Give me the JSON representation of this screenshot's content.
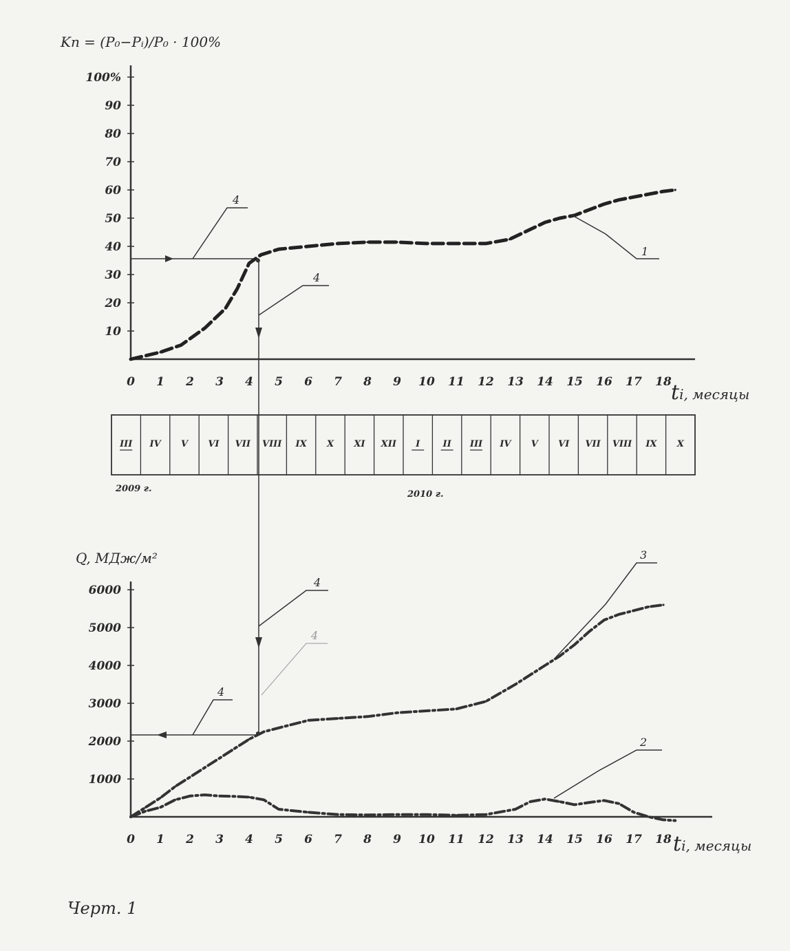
{
  "chart_data": [
    {
      "type": "line",
      "ylabel": "Kп = (P₀−Pᵢ)/P₀ · 100%",
      "xlabel_t": "t",
      "xlabel_rest": "i, месяцы",
      "x_ticks": [
        "0",
        "1",
        "2",
        "3",
        "4",
        "5",
        "6",
        "7",
        "8",
        "9",
        "10",
        "11",
        "12",
        "13",
        "14",
        "15",
        "16",
        "17",
        "18"
      ],
      "y_ticks": [
        "10",
        "20",
        "30",
        "40",
        "50",
        "60",
        "70",
        "80",
        "90",
        "100%"
      ],
      "x_range": [
        0,
        19
      ],
      "y_range": [
        0,
        100
      ],
      "series": [
        {
          "label": "1",
          "style": "dashed-thick",
          "color": "#222222",
          "x": [
            0,
            1,
            1.7,
            2.5,
            3.2,
            3.6,
            4,
            4.4,
            5,
            6,
            7,
            8,
            9,
            10,
            11,
            12,
            12.8,
            13.5,
            14,
            14.5,
            15,
            15.5,
            16,
            16.5,
            17,
            17.5,
            18,
            18.4
          ],
          "y": [
            0,
            2.5,
            5,
            11,
            18,
            25,
            34,
            37,
            39,
            40,
            41,
            41.5,
            41.5,
            41,
            41,
            41,
            42.5,
            46,
            48.5,
            50,
            51,
            53,
            55,
            56.5,
            57.5,
            58.5,
            59.5,
            60
          ]
        }
      ],
      "annotations": [
        {
          "text": "1"
        },
        {
          "text": "4"
        },
        {
          "text": "4"
        }
      ],
      "reference": {
        "x": 4.3,
        "y": 35
      }
    },
    {
      "type": "line",
      "ylabel": "Q, МДж/м²",
      "xlabel_t": "t",
      "xlabel_rest": "i, месяцы",
      "x_ticks": [
        "0",
        "1",
        "2",
        "3",
        "4",
        "5",
        "6",
        "7",
        "8",
        "9",
        "10",
        "11",
        "12",
        "13",
        "14",
        "15",
        "16",
        "17",
        "18"
      ],
      "y_ticks": [
        "1000",
        "2000",
        "3000",
        "4000",
        "5000",
        "6000"
      ],
      "x_range": [
        0,
        19
      ],
      "y_range": [
        0,
        6000
      ],
      "series": [
        {
          "label": "3",
          "style": "dash-dot",
          "color": "#333333",
          "x": [
            0,
            0.5,
            1,
            1.5,
            2,
            2.5,
            3,
            3.5,
            4,
            4.5,
            5,
            6,
            7,
            8,
            9,
            10,
            11,
            12,
            13,
            14,
            14.5,
            15,
            15.5,
            16,
            16.5,
            17,
            17.5,
            18
          ],
          "y": [
            0,
            250,
            500,
            800,
            1050,
            1300,
            1550,
            1800,
            2050,
            2250,
            2350,
            2550,
            2600,
            2650,
            2750,
            2800,
            2850,
            3050,
            3500,
            4000,
            4250,
            4550,
            4900,
            5200,
            5350,
            5450,
            5550,
            5600
          ]
        },
        {
          "label": "2",
          "style": "dash-dot",
          "color": "#333333",
          "x": [
            0,
            0.5,
            1,
            1.5,
            2,
            2.5,
            3,
            3.5,
            4,
            4.5,
            5,
            6,
            7,
            8,
            9,
            10,
            11,
            12,
            13,
            13.5,
            14,
            14.5,
            15,
            15.5,
            16,
            16.5,
            17,
            17.5,
            18,
            18.4
          ],
          "y": [
            0,
            150,
            250,
            450,
            550,
            580,
            550,
            540,
            520,
            450,
            200,
            120,
            60,
            50,
            60,
            60,
            40,
            60,
            200,
            400,
            470,
            400,
            320,
            380,
            430,
            350,
            120,
            0,
            -80,
            -100
          ]
        }
      ],
      "annotations": [
        {
          "text": "3"
        },
        {
          "text": "2"
        },
        {
          "text": "4"
        },
        {
          "text": "4"
        },
        {
          "text": "4"
        }
      ],
      "reference": {
        "x": 4.3,
        "y": 2200
      }
    }
  ],
  "calendar": {
    "months": [
      "III",
      "IV",
      "V",
      "VI",
      "VII",
      "VIII",
      "IX",
      "X",
      "XI",
      "XII",
      "I",
      "II",
      "III",
      "IV",
      "V",
      "VI",
      "VII",
      "VIII",
      "IX",
      "X"
    ],
    "underlined": [
      0,
      10,
      11,
      12
    ],
    "year_2009": "2009 г.",
    "year_2010": "2010 г."
  },
  "caption": "Черт. 1"
}
